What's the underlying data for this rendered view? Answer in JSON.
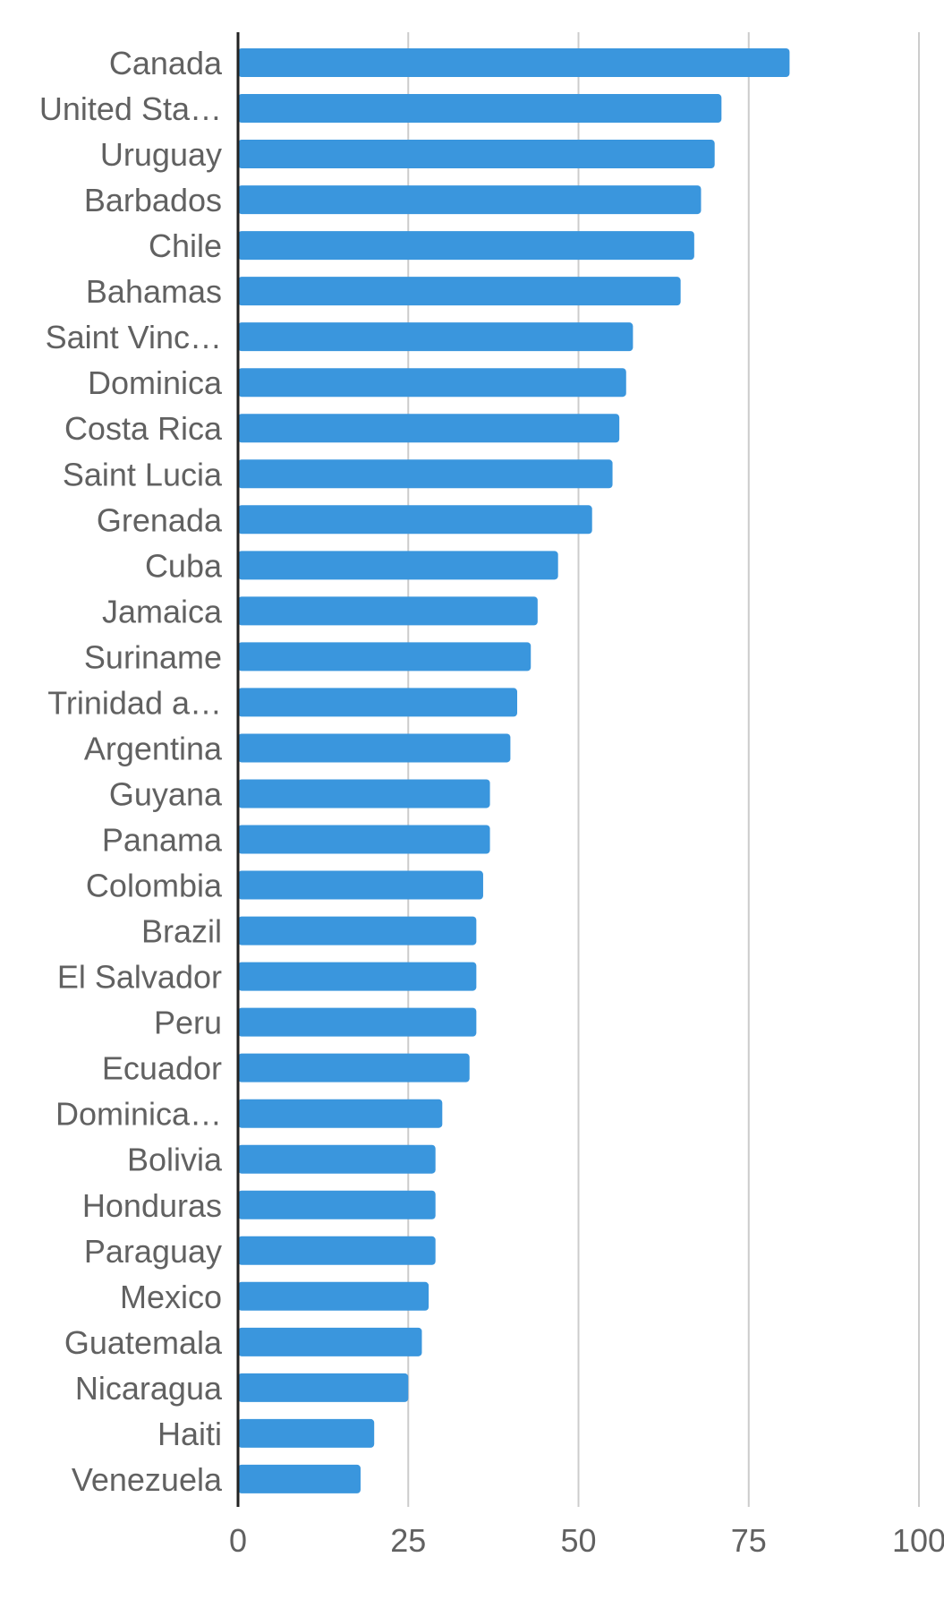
{
  "chart_data": {
    "type": "bar",
    "orientation": "horizontal",
    "categories": [
      "Canada",
      "United Sta…",
      "Uruguay",
      "Barbados",
      "Chile",
      "Bahamas",
      "Saint Vinc…",
      "Dominica",
      "Costa Rica",
      "Saint Lucia",
      "Grenada",
      "Cuba",
      "Jamaica",
      "Suriname",
      "Trinidad a…",
      "Argentina",
      "Guyana",
      "Panama",
      "Colombia",
      "Brazil",
      "El Salvador",
      "Peru",
      "Ecuador",
      "Dominica…",
      "Bolivia",
      "Honduras",
      "Paraguay",
      "Mexico",
      "Guatemala",
      "Nicaragua",
      "Haiti",
      "Venezuela"
    ],
    "values": [
      81,
      71,
      70,
      68,
      67,
      65,
      58,
      57,
      56,
      55,
      52,
      47,
      44,
      43,
      41,
      40,
      37,
      37,
      36,
      35,
      35,
      35,
      34,
      30,
      29,
      29,
      29,
      28,
      27,
      25,
      20,
      18
    ],
    "xlim": [
      0,
      100
    ],
    "x_ticks": [
      "0",
      "25",
      "50",
      "75",
      "100"
    ],
    "title": "",
    "xlabel": "",
    "ylabel": "",
    "grid": "vertical",
    "legend": "none",
    "colors": {
      "bar": "#3a96dd",
      "grid": "#cccccc",
      "axis": "#222222",
      "text": "#616161"
    }
  }
}
